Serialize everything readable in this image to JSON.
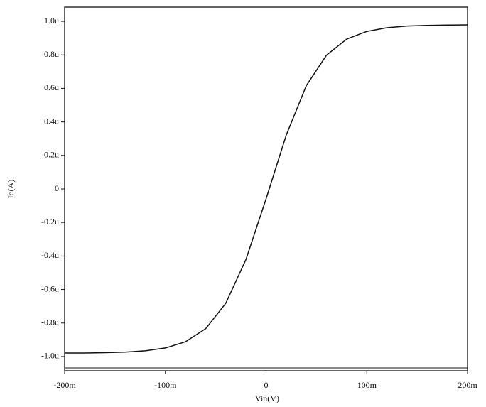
{
  "chart_data": {
    "type": "line",
    "x_label": "Vin(V)",
    "y_label": "Io(A)",
    "x": [
      -200,
      -180,
      -160,
      -140,
      -120,
      -100,
      -80,
      -60,
      -40,
      -20,
      0,
      20,
      40,
      60,
      80,
      100,
      120,
      140,
      160,
      180,
      200
    ],
    "series": [
      {
        "color": "#111111",
        "values": [
          -0.979,
          -0.979,
          -0.977,
          -0.974,
          -0.966,
          -0.949,
          -0.912,
          -0.834,
          -0.682,
          -0.421,
          -0.059,
          0.321,
          0.617,
          0.798,
          0.894,
          0.94,
          0.962,
          0.972,
          0.976,
          0.978,
          0.979
        ]
      }
    ],
    "xlim": [
      -200,
      200
    ],
    "xticks": [
      {
        "value": -200,
        "label": "-200m"
      },
      {
        "value": -100,
        "label": "-100m"
      },
      0,
      {
        "value": 100,
        "label": "100m"
      },
      {
        "value": 200,
        "label": "200m"
      }
    ],
    "ylim": [
      -1.085,
      1.085
    ],
    "yticks": [
      {
        "value": 1.0,
        "label": "1.0u"
      },
      {
        "value": 0.8,
        "label": "0.8u"
      },
      {
        "value": 0.6,
        "label": "0.6u"
      },
      {
        "value": 0.4,
        "label": "0.4u"
      },
      {
        "value": 0.2,
        "label": "0.2u"
      },
      0,
      {
        "value": -0.2,
        "label": "-0.2u"
      },
      {
        "value": -0.4,
        "label": "-0.4u"
      },
      {
        "value": -0.6,
        "label": "-0.6u"
      },
      {
        "value": -0.8,
        "label": "-0.8u"
      },
      {
        "value": -1.0,
        "label": "-1.0u"
      }
    ],
    "grid": false
  }
}
